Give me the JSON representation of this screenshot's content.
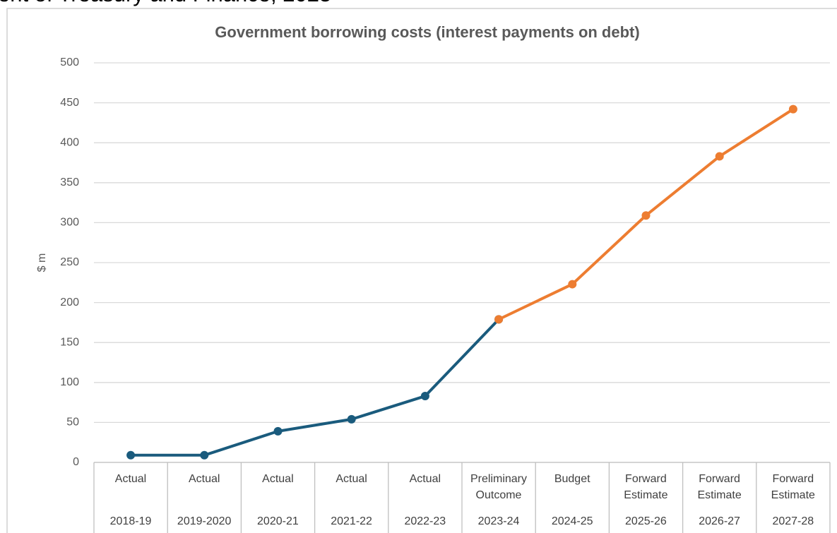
{
  "source": "ent of Treasury and Finance, 2025",
  "chart_data": {
    "type": "line",
    "title": "Government borrowing costs (interest payments on debt)",
    "y_label": "$ m",
    "category_groups": [
      "Actual",
      "Actual",
      "Actual",
      "Actual",
      "Actual",
      "Preliminary Outcome",
      "Budget",
      "Forward Estimate",
      "Forward Estimate",
      "Forward Estimate"
    ],
    "categories": [
      "2018-19",
      "2019-2020",
      "2020-21",
      "2021-22",
      "2022-23",
      "2023-24",
      "2024-25",
      "2025-26",
      "2026-27",
      "2027-28"
    ],
    "series": [
      {
        "color": "#1a5b7d",
        "values": [
          9,
          9,
          39,
          54,
          83,
          179,
          null,
          null,
          null,
          null
        ]
      },
      {
        "color": "#ed7d31",
        "values": [
          null,
          null,
          null,
          null,
          null,
          179,
          223,
          309,
          383,
          442
        ]
      }
    ],
    "ylim": [
      0,
      500
    ],
    "yticks": [
      0,
      50,
      100,
      150,
      200,
      250,
      300,
      350,
      400,
      450,
      500
    ],
    "grid": true
  }
}
